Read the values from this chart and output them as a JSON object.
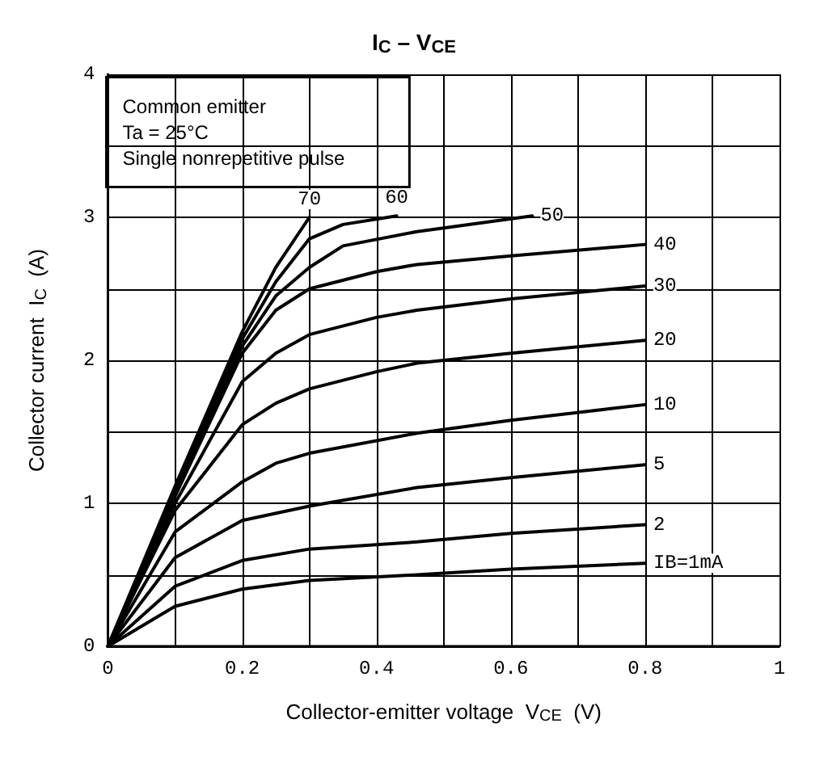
{
  "chart_data": {
    "type": "line",
    "title": "I$_{C}$ – V$_{CE}$",
    "xlabel": "Collector-emitter voltage  V$_{CE}$  (V)",
    "ylabel": "Collector current  I$_{C}$  (A)",
    "annotations": [
      "Common emitter",
      "Ta = 25°C",
      "Single nonrepetitive pulse"
    ],
    "xlim": [
      0,
      1
    ],
    "xticks": [
      0,
      {
        "value": 0.1,
        "label": null
      },
      {
        "value": 0.2,
        "label": "0.2"
      },
      {
        "value": 0.3,
        "label": null
      },
      {
        "value": 0.4,
        "label": "0.4"
      },
      {
        "value": 0.5,
        "label": null
      },
      {
        "value": 0.6,
        "label": "0.6"
      },
      {
        "value": 0.7,
        "label": null
      },
      {
        "value": 0.8,
        "label": "0.8"
      },
      {
        "value": 0.9,
        "label": null
      },
      1
    ],
    "ylim": [
      0,
      4
    ],
    "yticks": [
      0,
      {
        "value": 0.5,
        "label": null
      },
      1,
      {
        "value": 1.5,
        "label": null
      },
      2,
      {
        "value": 2.5,
        "label": null
      },
      3,
      {
        "value": 3.5,
        "label": null
      },
      4
    ],
    "grid": true,
    "marker": "none",
    "line_style": "solid",
    "series": [
      {
        "name": "IB=1mA",
        "color": "#000000",
        "x": [
          0,
          0.1,
          0.2,
          0.3,
          0.46,
          0.6,
          0.8
        ],
        "values": [
          0,
          0.28,
          0.4,
          0.46,
          0.5,
          0.54,
          0.58
        ]
      },
      {
        "name": "2",
        "color": "#000000",
        "x": [
          0,
          0.1,
          0.2,
          0.3,
          0.46,
          0.6,
          0.8
        ],
        "values": [
          0,
          0.42,
          0.6,
          0.68,
          0.73,
          0.79,
          0.85
        ]
      },
      {
        "name": "5",
        "color": "#000000",
        "x": [
          0,
          0.1,
          0.2,
          0.3,
          0.46,
          0.6,
          0.8
        ],
        "values": [
          0,
          0.62,
          0.88,
          0.98,
          1.11,
          1.18,
          1.27
        ]
      },
      {
        "name": "10",
        "color": "#000000",
        "x": [
          0,
          0.1,
          0.2,
          0.25,
          0.3,
          0.46,
          0.6,
          0.8
        ],
        "values": [
          0,
          0.8,
          1.15,
          1.28,
          1.35,
          1.49,
          1.58,
          1.69
        ]
      },
      {
        "name": "20",
        "color": "#000000",
        "x": [
          0,
          0.1,
          0.2,
          0.25,
          0.3,
          0.4,
          0.46,
          0.6,
          0.8
        ],
        "values": [
          0,
          0.95,
          1.55,
          1.7,
          1.8,
          1.92,
          1.98,
          2.05,
          2.14
        ]
      },
      {
        "name": "30",
        "color": "#000000",
        "x": [
          0,
          0.1,
          0.2,
          0.25,
          0.3,
          0.4,
          0.46,
          0.6,
          0.8
        ],
        "values": [
          0,
          1.0,
          1.85,
          2.05,
          2.18,
          2.3,
          2.35,
          2.43,
          2.52
        ]
      },
      {
        "name": "40",
        "color": "#000000",
        "x": [
          0,
          0.1,
          0.2,
          0.25,
          0.3,
          0.4,
          0.46,
          0.6,
          0.8
        ],
        "values": [
          0,
          1.05,
          2.05,
          2.35,
          2.5,
          2.62,
          2.67,
          2.73,
          2.81
        ]
      },
      {
        "name": "50",
        "color": "#000000",
        "x": [
          0,
          0.1,
          0.2,
          0.25,
          0.3,
          0.35,
          0.46,
          0.632
        ],
        "values": [
          0,
          1.08,
          2.1,
          2.45,
          2.65,
          2.8,
          2.9,
          3.01
        ]
      },
      {
        "name": "60",
        "color": "#000000",
        "x": [
          0,
          0.1,
          0.2,
          0.25,
          0.3,
          0.35,
          0.43
        ],
        "values": [
          0,
          1.1,
          2.15,
          2.55,
          2.85,
          2.95,
          3.01
        ]
      },
      {
        "name": "70",
        "color": "#000000",
        "x": [
          0,
          0.1,
          0.2,
          0.25,
          0.3
        ],
        "values": [
          0,
          1.12,
          2.2,
          2.65,
          3.0
        ]
      }
    ]
  }
}
